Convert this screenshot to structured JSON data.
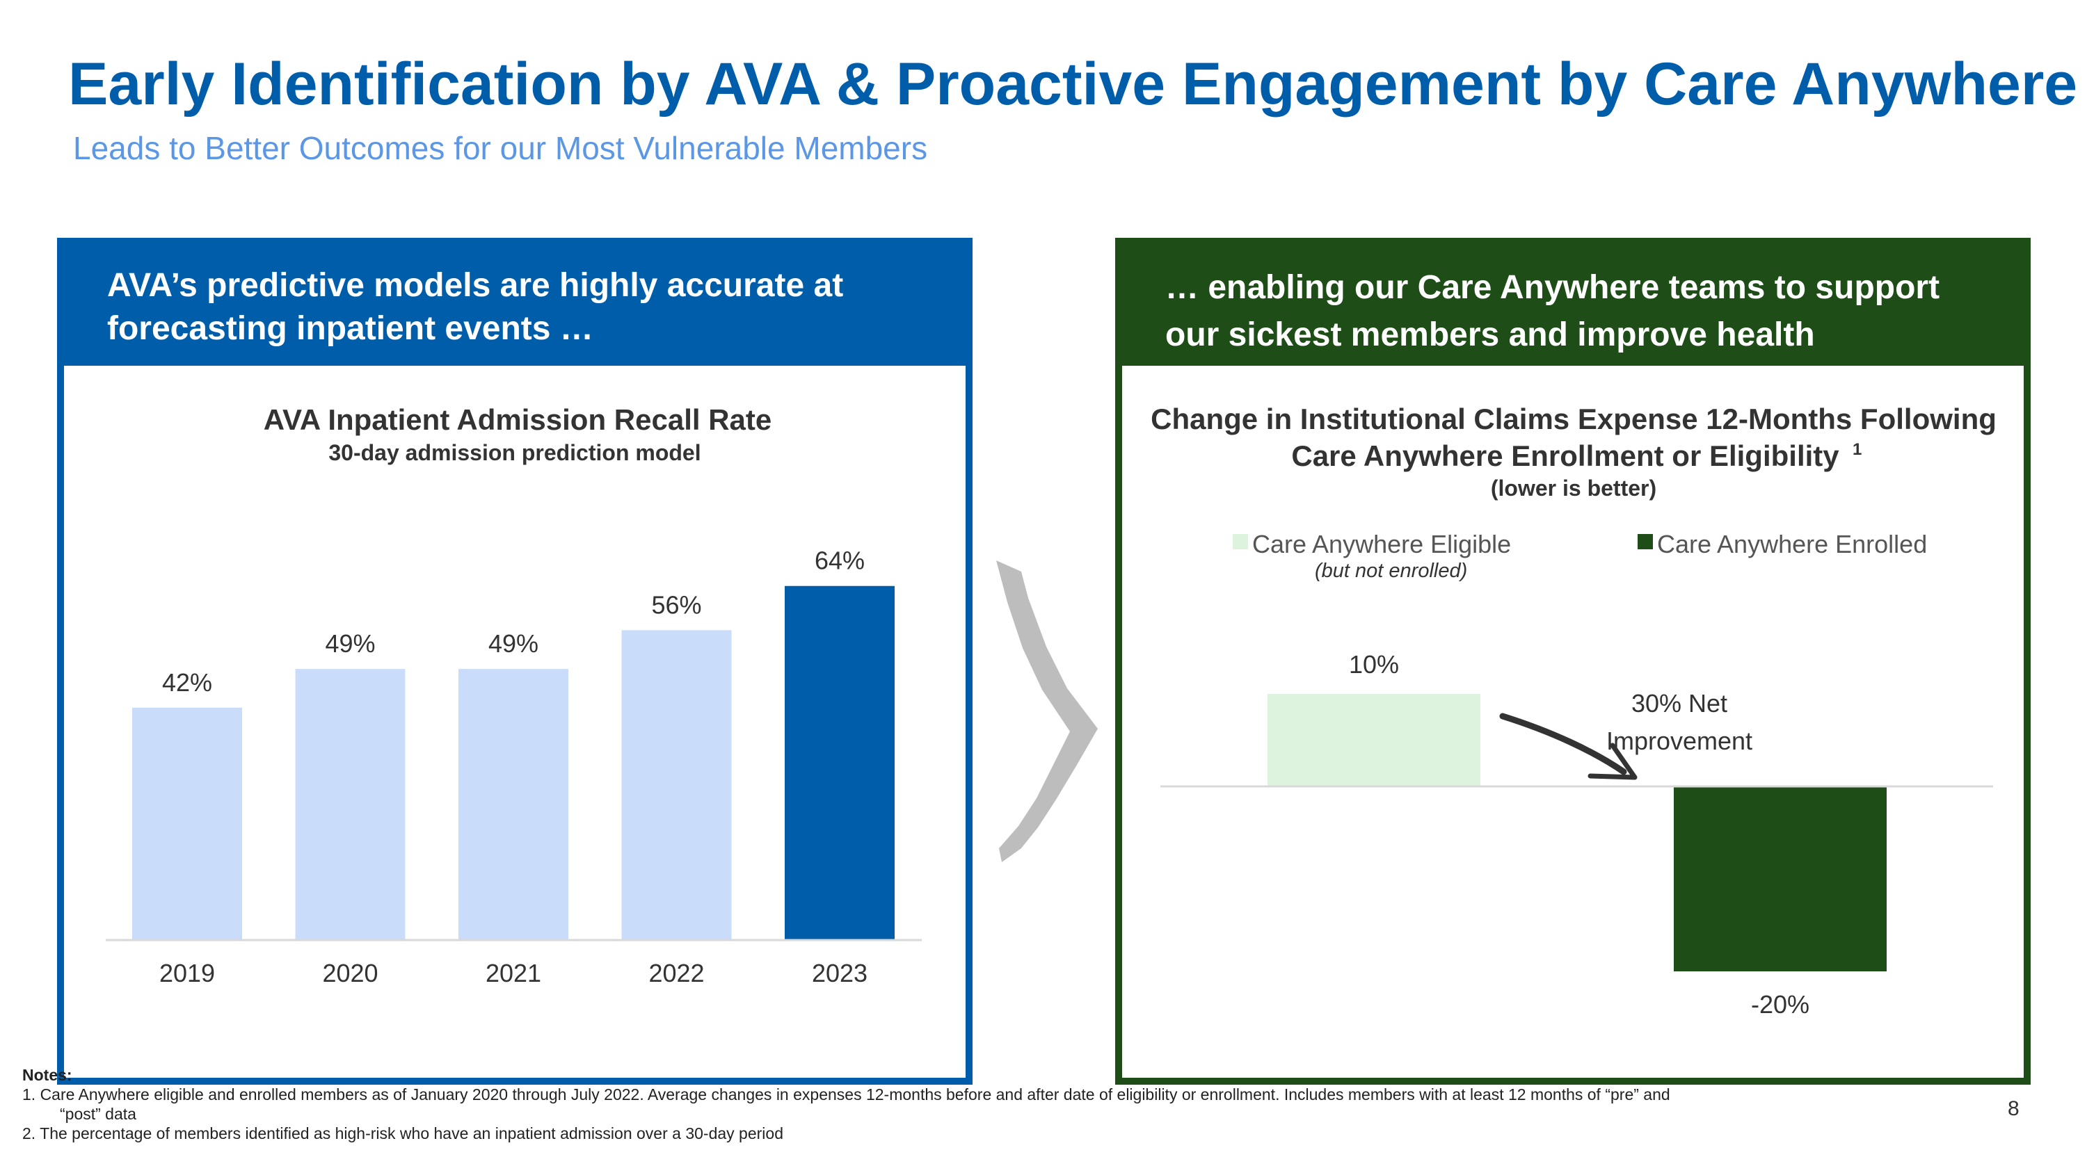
{
  "header": {
    "title": "Early Identification by AVA & Proactive Engagement by Care Anywhere",
    "subtitle": "Leads to Better Outcomes for our Most Vulnerable Members"
  },
  "left_panel": {
    "heading_line1": "AVA’s predictive models are highly accurate at",
    "heading_line2": "forecasting inpatient events …"
  },
  "right_panel": {
    "heading_line1": "… enabling our Care Anywhere teams to support",
    "heading_line2": "our sickest members and improve health"
  },
  "chart_data": [
    {
      "type": "bar",
      "title": "AVA Inpatient Admission Recall Rate",
      "subtitle": "30-day admission prediction model",
      "categories": [
        "2019",
        "2020",
        "2021",
        "2022",
        "2023"
      ],
      "values": [
        42,
        49,
        49,
        56,
        64
      ],
      "data_labels": [
        "42%",
        "49%",
        "49%",
        "56%",
        "64%"
      ],
      "unit": "%",
      "ylim": [
        0,
        70
      ],
      "grid": false,
      "highlight_index": 4,
      "colors": {
        "default": "#C9DCF9",
        "highlight": "#005DAA"
      }
    },
    {
      "type": "bar",
      "title_line1": "Change in Institutional Claims Expense 12-Months Following",
      "title_line2": "Care Anywhere Enrollment or Eligibility",
      "title_sup": "1",
      "subtitle": "(lower is better)",
      "series": [
        {
          "name": "Care Anywhere Eligible",
          "name_note": "(but not enrolled)",
          "value": 10,
          "label": "10%",
          "color": "#DDF3DD"
        },
        {
          "name": "Care Anywhere Enrolled",
          "value": -20,
          "label": "-20%",
          "color": "#1E4D18"
        }
      ],
      "annotation_line1": "30% Net",
      "annotation_line2": "Improvement",
      "ylim": [
        -25,
        15
      ],
      "legend": "top",
      "grid": false
    }
  ],
  "notes": {
    "heading": "Notes:",
    "line1": "1. Care Anywhere eligible and enrolled members as of January 2020 through July 2022. Average changes in expenses 12-months before and after date of eligibility or enrollment. Includes members with at least 12 months of “pre” and",
    "line1_cont": "“post” data",
    "line2": "2. The percentage of members identified as high-risk who have an inpatient admission over a 30-day period"
  },
  "page_number": "8"
}
